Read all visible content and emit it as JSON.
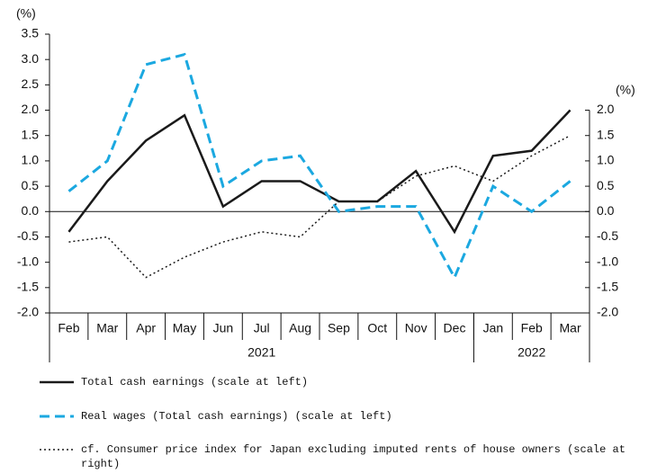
{
  "chart_data": {
    "type": "line",
    "y_unit": "(%)",
    "y2_unit": "(%)",
    "categories": [
      "Feb",
      "Mar",
      "Apr",
      "May",
      "Jun",
      "Jul",
      "Aug",
      "Sep",
      "Oct",
      "Nov",
      "Dec",
      "Jan",
      "Feb",
      "Mar"
    ],
    "year_groups": [
      {
        "label": "2021",
        "span": 11
      },
      {
        "label": "2022",
        "span": 3
      }
    ],
    "series": [
      {
        "name": "Total cash earnings (scale at left)",
        "color": "#1a1a1a",
        "style": "solid",
        "axis": "y",
        "values": [
          -0.4,
          0.6,
          1.4,
          1.9,
          0.1,
          0.6,
          0.6,
          0.2,
          0.2,
          0.8,
          -0.4,
          1.1,
          1.2,
          2.0
        ]
      },
      {
        "name": "Real wages (Total cash earnings) (scale at left)",
        "color": "#1ba8e0",
        "style": "dashed",
        "axis": "y",
        "values": [
          0.4,
          1.0,
          2.9,
          3.1,
          0.5,
          1.0,
          1.1,
          0.0,
          0.1,
          0.1,
          -1.3,
          0.5,
          0.0,
          0.6
        ]
      },
      {
        "name": "cf. Consumer price index for Japan excluding imputed rents of house owners (scale at right)",
        "color": "#1a1a1a",
        "style": "dotted",
        "axis": "y2",
        "values": [
          -0.6,
          -0.5,
          -1.3,
          -0.9,
          -0.6,
          -0.4,
          -0.5,
          0.2,
          0.2,
          0.7,
          0.9,
          0.6,
          1.1,
          1.5
        ]
      }
    ],
    "ylim": [
      -2.0,
      3.5
    ],
    "yticks": [
      {
        "value": -2.0,
        "label": "-2.0"
      },
      -1.5,
      {
        "value": -1.0,
        "label": "-1.0"
      },
      -0.5,
      {
        "value": 0.0,
        "label": "0.0"
      },
      0.5,
      {
        "value": 1.0,
        "label": "1.0"
      },
      1.5,
      {
        "value": 2.0,
        "label": "2.0"
      },
      2.5,
      {
        "value": 3.0,
        "label": "3.0"
      },
      3.5
    ],
    "y2lim": [
      -2.0,
      2.0
    ],
    "y2ticks": [
      {
        "value": -2.0,
        "label": "-2.0"
      },
      -1.5,
      {
        "value": -1.0,
        "label": "-1.0"
      },
      -0.5,
      {
        "value": 0.0,
        "label": "0.0"
      },
      0.5,
      {
        "value": 1.0,
        "label": "1.0"
      },
      1.5,
      {
        "value": 2.0,
        "label": "2.0"
      }
    ]
  }
}
